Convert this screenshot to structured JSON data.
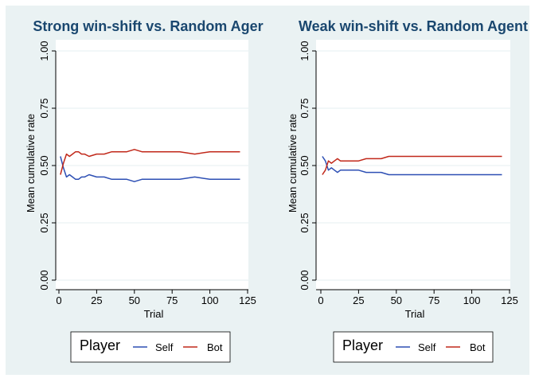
{
  "colors": {
    "outer_background": "#eaf2f3",
    "plot_background": "#ffffff",
    "title": "#1a476f",
    "gridline": "#eaf2f3",
    "axis": "#000000",
    "self": "#2d4fb4",
    "bot": "#c1281a"
  },
  "legend": {
    "title": "Player",
    "items": [
      {
        "label": "Self",
        "color": "#2d4fb4"
      },
      {
        "label": "Bot",
        "color": "#c1281a"
      }
    ]
  },
  "chart_data": [
    {
      "type": "line",
      "title": "Strong win-shift vs. Random Ager",
      "xlabel": "Trial",
      "ylabel": "Mean cumulative rate",
      "xlim": [
        0,
        125
      ],
      "ylim": [
        0,
        1
      ],
      "xticks": [
        "0",
        "25",
        "50",
        "75",
        "100",
        "125"
      ],
      "yticks": [
        "0.00",
        "0.25",
        "0.50",
        "0.75",
        "1.00"
      ],
      "grid": true,
      "series": [
        {
          "name": "Self",
          "x": [
            1,
            3,
            5,
            7,
            9,
            11,
            13,
            15,
            17,
            20,
            25,
            30,
            35,
            40,
            45,
            50,
            55,
            60,
            70,
            80,
            90,
            100,
            110,
            120
          ],
          "y": [
            0.54,
            0.49,
            0.45,
            0.46,
            0.45,
            0.44,
            0.44,
            0.45,
            0.45,
            0.46,
            0.45,
            0.45,
            0.44,
            0.44,
            0.44,
            0.43,
            0.44,
            0.44,
            0.44,
            0.44,
            0.45,
            0.44,
            0.44,
            0.44
          ]
        },
        {
          "name": "Bot",
          "x": [
            1,
            3,
            5,
            7,
            9,
            11,
            13,
            15,
            17,
            20,
            25,
            30,
            35,
            40,
            45,
            50,
            55,
            60,
            70,
            80,
            90,
            100,
            110,
            120
          ],
          "y": [
            0.46,
            0.51,
            0.55,
            0.54,
            0.55,
            0.56,
            0.56,
            0.55,
            0.55,
            0.54,
            0.55,
            0.55,
            0.56,
            0.56,
            0.56,
            0.57,
            0.56,
            0.56,
            0.56,
            0.56,
            0.55,
            0.56,
            0.56,
            0.56
          ]
        }
      ]
    },
    {
      "type": "line",
      "title": "Weak win-shift vs. Random Agent",
      "xlabel": "Trial",
      "ylabel": "Mean cumulative rate",
      "xlim": [
        0,
        125
      ],
      "ylim": [
        0,
        1
      ],
      "xticks": [
        "0",
        "25",
        "50",
        "75",
        "100",
        "125"
      ],
      "yticks": [
        "0.00",
        "0.25",
        "0.50",
        "0.75",
        "1.00"
      ],
      "grid": true,
      "series": [
        {
          "name": "Self",
          "x": [
            1,
            3,
            5,
            7,
            9,
            11,
            13,
            15,
            17,
            20,
            25,
            30,
            35,
            40,
            45,
            50,
            55,
            60,
            70,
            80,
            90,
            100,
            110,
            120
          ],
          "y": [
            0.54,
            0.52,
            0.48,
            0.49,
            0.48,
            0.47,
            0.48,
            0.48,
            0.48,
            0.48,
            0.48,
            0.47,
            0.47,
            0.47,
            0.46,
            0.46,
            0.46,
            0.46,
            0.46,
            0.46,
            0.46,
            0.46,
            0.46,
            0.46
          ]
        },
        {
          "name": "Bot",
          "x": [
            1,
            3,
            5,
            7,
            9,
            11,
            13,
            15,
            17,
            20,
            25,
            30,
            35,
            40,
            45,
            50,
            55,
            60,
            70,
            80,
            90,
            100,
            110,
            120
          ],
          "y": [
            0.46,
            0.48,
            0.52,
            0.51,
            0.52,
            0.53,
            0.52,
            0.52,
            0.52,
            0.52,
            0.52,
            0.53,
            0.53,
            0.53,
            0.54,
            0.54,
            0.54,
            0.54,
            0.54,
            0.54,
            0.54,
            0.54,
            0.54,
            0.54
          ]
        }
      ]
    }
  ]
}
